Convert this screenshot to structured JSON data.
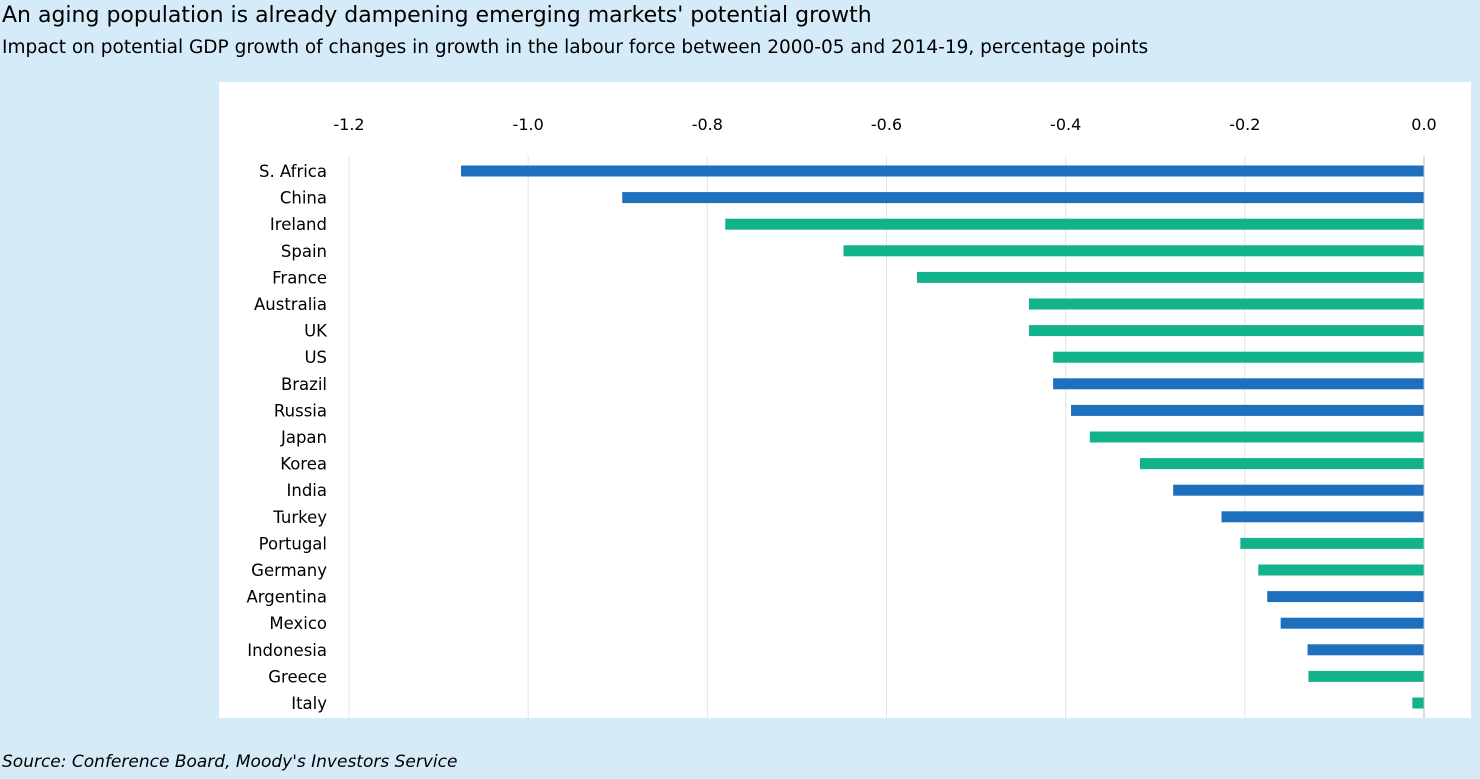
{
  "header": {
    "title": "An aging population is already dampening emerging markets' potential growth",
    "subtitle": "Impact on potential GDP growth of changes in growth in the labour force between 2000-05 and 2014-19, percentage points"
  },
  "footer": {
    "source": "Source: Conference Board, Moody's Investors Service"
  },
  "colors": {
    "background": "#d5ecf8",
    "plot_background": "#ffffff",
    "emerging": "#1f6fbf",
    "advanced": "#12b28c",
    "gridline": "#e4e4e4"
  },
  "chart_data": {
    "type": "bar",
    "orientation": "horizontal",
    "title": "An aging population is already dampening emerging markets' potential growth",
    "subtitle": "Impact on potential GDP growth of changes in growth in the labour force between 2000-05 and 2014-19, percentage points",
    "xlim": [
      -1.2,
      0.0
    ],
    "x_ticks": [
      "-1.2",
      "-1.0",
      "-0.8",
      "-0.6",
      "-0.4",
      "-0.2",
      "0.0"
    ],
    "x_axis_position": "top",
    "grid": "vertical",
    "legend": "none",
    "categories": [
      "S. Africa",
      "China",
      "Ireland",
      "Spain",
      "France",
      "Australia",
      "UK",
      "US",
      "Brazil",
      "Russia",
      "Japan",
      "Korea",
      "India",
      "Turkey",
      "Portugal",
      "Germany",
      "Argentina",
      "Mexico",
      "Indonesia",
      "Greece",
      "Italy"
    ],
    "values": [
      -1.075,
      -0.895,
      -0.78,
      -0.648,
      -0.566,
      -0.441,
      -0.441,
      -0.414,
      -0.414,
      -0.394,
      -0.373,
      -0.317,
      -0.28,
      -0.226,
      -0.205,
      -0.185,
      -0.175,
      -0.16,
      -0.13,
      -0.129,
      -0.013
    ],
    "bar_colors": [
      "#1f6fbf",
      "#1f6fbf",
      "#12b28c",
      "#12b28c",
      "#12b28c",
      "#12b28c",
      "#12b28c",
      "#12b28c",
      "#1f6fbf",
      "#1f6fbf",
      "#12b28c",
      "#12b28c",
      "#1f6fbf",
      "#1f6fbf",
      "#12b28c",
      "#12b28c",
      "#1f6fbf",
      "#1f6fbf",
      "#1f6fbf",
      "#12b28c",
      "#12b28c"
    ]
  }
}
